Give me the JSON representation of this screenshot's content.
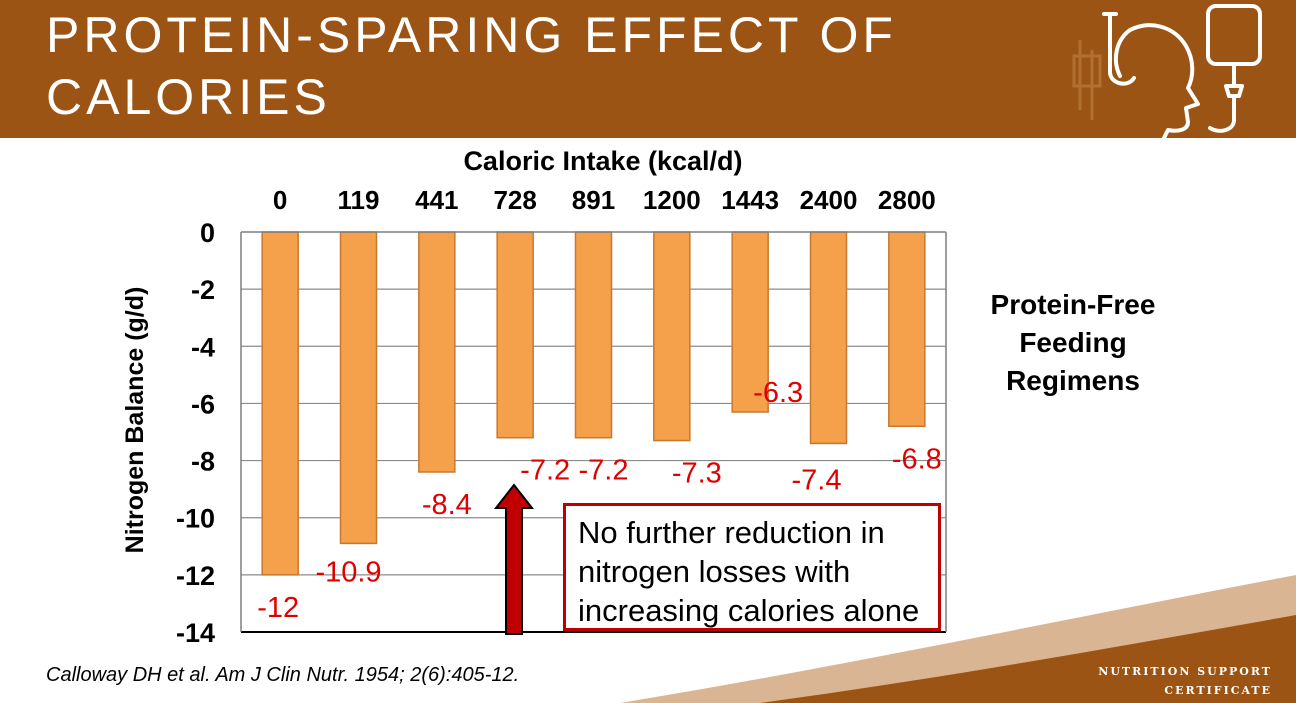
{
  "slide": {
    "title_line1": "PROTEIN-SPARING EFFECT OF",
    "title_line2": "CALORIES",
    "callout_line1": "No further reduction in",
    "callout_line2": "nitrogen losses with",
    "callout_line3": "increasing calories alone",
    "note_line1": "Protein-Free",
    "note_line2": "Feeding",
    "note_line3": "Regimens",
    "citation": "Calloway DH et al. Am J Clin Nutr. 1954; 2(6):405-12.",
    "brand_line1": "NUTRITION SUPPORT",
    "brand_line2": "CERTIFICATE",
    "colors": {
      "header": "#9b5414",
      "bar": "#f5a04a",
      "bar_edge": "#c8782e",
      "data_label": "#e00000",
      "arrow": "#c00000",
      "callout_border": "#c00000"
    },
    "icons": [
      "iv-drip-head-icon"
    ]
  },
  "chart_data": {
    "type": "bar",
    "xlabel": "Caloric Intake (kcal/d)",
    "ylabel": "Nitrogen Balance (g/d)",
    "categories": [
      "0",
      "119",
      "441",
      "728",
      "891",
      "1200",
      "1443",
      "2400",
      "2800"
    ],
    "values": [
      -12,
      -10.9,
      -8.4,
      -7.2,
      -7.2,
      -7.3,
      -6.3,
      -7.4,
      -6.8
    ],
    "data_labels": [
      "-12",
      "-10.9",
      "-8.4",
      "-7.2",
      "-7.2",
      "-7.3",
      "-6.3",
      "-7.4",
      "-6.8"
    ],
    "ylim": [
      -14,
      0
    ],
    "yticks": [
      0,
      -2,
      -4,
      -6,
      -8,
      -10,
      -12,
      -14
    ],
    "grid": true,
    "x_axis_position": "top",
    "annotation": "arrow pointing to 728 kcal/d bar"
  }
}
